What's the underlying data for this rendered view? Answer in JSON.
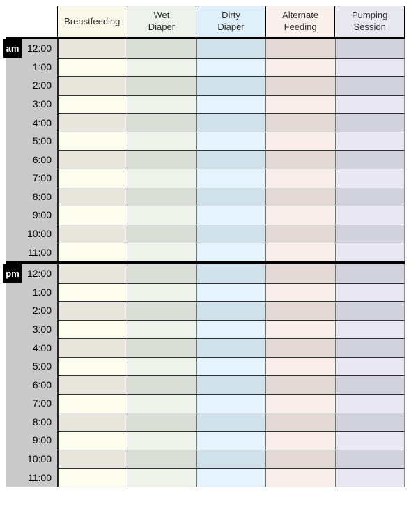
{
  "table": {
    "columns": [
      {
        "label": "Breastfeeding",
        "header_bg": "#fbfaea",
        "row_even_bg": "#e8e6dd",
        "row_odd_bg": "#fdfdee"
      },
      {
        "label": "Wet\nDiaper",
        "header_bg": "#edf3ea",
        "row_even_bg": "#d9dfd6",
        "row_odd_bg": "#eef3ea"
      },
      {
        "label": "Dirty\nDiaper",
        "header_bg": "#e0f0fa",
        "row_even_bg": "#d0e1eb",
        "row_odd_bg": "#e5f3fc"
      },
      {
        "label": "Alternate\nFeeding",
        "header_bg": "#fbf1ec",
        "row_even_bg": "#e2d9d5",
        "row_odd_bg": "#faeeea"
      },
      {
        "label": "Pumping\nSession",
        "header_bg": "#e8e8f1",
        "row_even_bg": "#d1d2de",
        "row_odd_bg": "#e8e7f3"
      }
    ],
    "sections": [
      {
        "meridiem": "am",
        "hours": [
          "12:00",
          "1:00",
          "2:00",
          "3:00",
          "4:00",
          "5:00",
          "6:00",
          "7:00",
          "8:00",
          "9:00",
          "10:00",
          "11:00"
        ]
      },
      {
        "meridiem": "pm",
        "hours": [
          "12:00",
          "1:00",
          "2:00",
          "3:00",
          "4:00",
          "5:00",
          "6:00",
          "7:00",
          "8:00",
          "9:00",
          "10:00",
          "11:00"
        ]
      }
    ]
  },
  "colors": {
    "page_bg": "#ffffff",
    "time_column_bg": "#c9c9c9",
    "badge_bg": "#000000",
    "badge_text": "#ffffff",
    "header_border": "#000000",
    "header_divider": "#000000",
    "section_divider": "#000000",
    "row_border": "#2e3134",
    "column_border": "#6f7276",
    "outer_right_border": "#8d8d8d",
    "bottom_border": "#a9a9a9"
  }
}
